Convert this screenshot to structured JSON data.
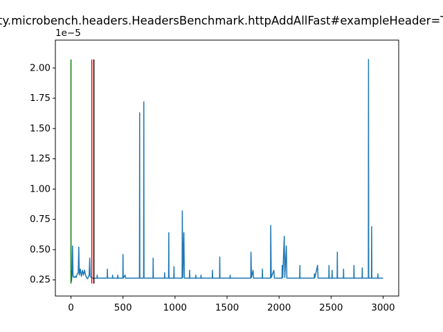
{
  "chart_data": {
    "type": "line",
    "title": "ty.microbench.headers.HeadersBenchmark.httpAddAllFast#exampleHeader=T",
    "y_offset_label": "1e−5",
    "xlim": [
      -150,
      3150
    ],
    "xticks": [
      0,
      500,
      1000,
      1500,
      2000,
      2500,
      3000
    ],
    "ylim": [
      1.17e-06,
      2.23e-05
    ],
    "yticks": [
      {
        "value": 2.5e-06,
        "label": "0.25"
      },
      {
        "value": 5e-06,
        "label": "0.50"
      },
      {
        "value": 7.5e-06,
        "label": "0.75"
      },
      {
        "value": 1e-05,
        "label": "1.00"
      },
      {
        "value": 1.25e-05,
        "label": "1.25"
      },
      {
        "value": 1.5e-05,
        "label": "1.50"
      },
      {
        "value": 1.75e-05,
        "label": "1.75"
      },
      {
        "value": 2e-05,
        "label": "2.00"
      }
    ],
    "grid": false,
    "series": [
      {
        "color": "#1f77b4",
        "x": [
          0,
          5,
          10,
          15,
          20,
          30,
          40,
          50,
          60,
          70,
          75,
          80,
          90,
          100,
          110,
          120,
          130,
          140,
          150,
          160,
          175,
          180,
          185,
          200,
          250,
          252,
          254,
          348,
          350,
          352,
          398,
          400,
          402,
          448,
          450,
          452,
          498,
          500,
          502,
          520,
          525,
          658,
          660,
          662,
          698,
          700,
          702,
          788,
          790,
          792,
          898,
          900,
          902,
          938,
          940,
          942,
          988,
          990,
          992,
          1068,
          1070,
          1075,
          1085,
          1090,
          1138,
          1140,
          1142,
          1198,
          1200,
          1202,
          1248,
          1250,
          1252,
          1358,
          1360,
          1362,
          1428,
          1430,
          1432,
          1528,
          1530,
          1532,
          1728,
          1730,
          1735,
          1750,
          1755,
          1838,
          1840,
          1842,
          1918,
          1920,
          1925,
          1950,
          1955,
          2028,
          2030,
          2035,
          2050,
          2055,
          2070,
          2075,
          2198,
          2200,
          2202,
          2338,
          2340,
          2345,
          2370,
          2375,
          2478,
          2480,
          2482,
          2508,
          2510,
          2512,
          2558,
          2560,
          2562,
          2618,
          2620,
          2622,
          2718,
          2720,
          2722,
          2798,
          2800,
          2802,
          2858,
          2860,
          2862,
          2888,
          2890,
          2892,
          2948,
          2950,
          2952,
          3000
        ],
        "values": [
          3.3e-06,
          2.4e-06,
          3e-06,
          5.3e-06,
          2.8e-06,
          2.7e-06,
          2.8e-06,
          2.7e-06,
          3e-06,
          3.1e-06,
          5.2e-06,
          2.9e-06,
          3.4e-06,
          2.8e-06,
          3.3e-06,
          2.9e-06,
          3.3e-06,
          2.9e-06,
          2.7e-06,
          2.6e-06,
          2.9e-06,
          4.3e-06,
          2.8e-06,
          2.65e-06,
          2.65e-06,
          2.9e-06,
          2.65e-06,
          2.65e-06,
          3.4e-06,
          2.65e-06,
          2.65e-06,
          2.9e-06,
          2.65e-06,
          2.65e-06,
          2.9e-06,
          2.65e-06,
          2.65e-06,
          4.6e-06,
          2.65e-06,
          2.9e-06,
          2.65e-06,
          2.65e-06,
          1.63e-05,
          2.65e-06,
          2.65e-06,
          1.72e-05,
          2.65e-06,
          2.65e-06,
          4.3e-06,
          2.65e-06,
          2.65e-06,
          3.1e-06,
          2.65e-06,
          2.65e-06,
          6.4e-06,
          2.65e-06,
          2.65e-06,
          3.6e-06,
          2.65e-06,
          2.65e-06,
          8.2e-06,
          2.7e-06,
          6.4e-06,
          2.65e-06,
          2.65e-06,
          3.3e-06,
          2.65e-06,
          2.65e-06,
          2.9e-06,
          2.65e-06,
          2.65e-06,
          2.9e-06,
          2.65e-06,
          2.65e-06,
          3.3e-06,
          2.65e-06,
          2.65e-06,
          4.4e-06,
          2.65e-06,
          2.65e-06,
          2.9e-06,
          2.65e-06,
          2.65e-06,
          4.8e-06,
          2.7e-06,
          3.3e-06,
          2.65e-06,
          2.65e-06,
          3.4e-06,
          2.65e-06,
          2.65e-06,
          7e-06,
          2.7e-06,
          3.3e-06,
          2.65e-06,
          2.65e-06,
          3.7e-06,
          2.7e-06,
          6.1e-06,
          2.7e-06,
          5.3e-06,
          2.65e-06,
          2.65e-06,
          3.7e-06,
          2.65e-06,
          2.65e-06,
          3e-06,
          2.7e-06,
          3.7e-06,
          2.65e-06,
          2.65e-06,
          3.7e-06,
          2.65e-06,
          2.65e-06,
          3.3e-06,
          2.65e-06,
          2.65e-06,
          4.8e-06,
          2.65e-06,
          2.65e-06,
          3.4e-06,
          2.65e-06,
          2.65e-06,
          3.7e-06,
          2.65e-06,
          2.65e-06,
          3.5e-06,
          2.65e-06,
          2.65e-06,
          2.07e-05,
          2.65e-06,
          2.65e-06,
          6.9e-06,
          2.65e-06,
          2.65e-06,
          3e-06,
          2.65e-06,
          2.65e-06
        ]
      }
    ],
    "vlines": [
      {
        "x": 0,
        "ymin": 2.2e-06,
        "ymax": 2.07e-05,
        "color": "green"
      },
      {
        "x": 200,
        "ymin": 2.2e-06,
        "ymax": 2.07e-05,
        "color": "red"
      },
      {
        "x": 220,
        "ymin": 2.2e-06,
        "ymax": 2.07e-05,
        "color": "black"
      }
    ]
  }
}
